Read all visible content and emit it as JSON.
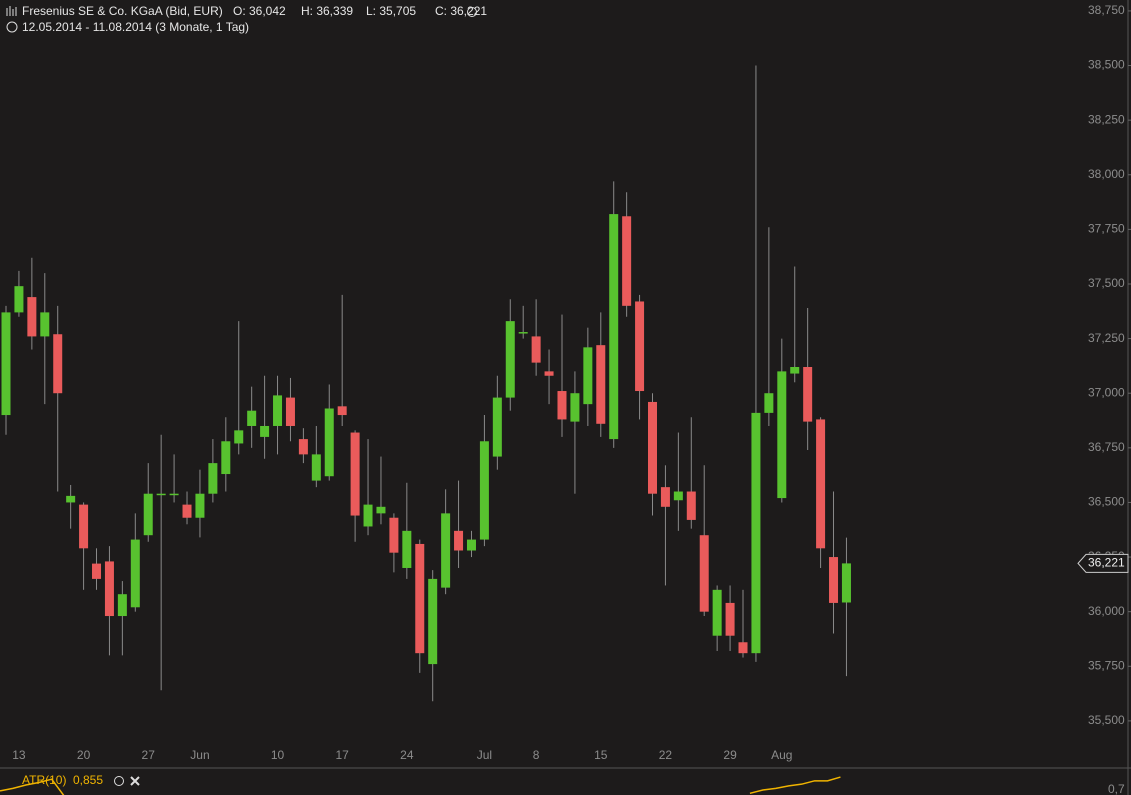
{
  "chart_data": {
    "type": "candlestick",
    "title": "Fresenius SE & Co. KGaA (Bid, EUR)",
    "ohlc_labels": [
      "O: 36,042",
      "H: 36,339",
      "L: 35,705",
      "C: 36,221"
    ],
    "subtitle": "12.05.2014 - 11.08.2014 (3 Monate, 1 Tag)",
    "categories": [
      null,
      "13",
      null,
      null,
      null,
      null,
      "20",
      null,
      null,
      null,
      null,
      "27",
      null,
      null,
      null,
      "Jun",
      null,
      null,
      null,
      null,
      null,
      "10",
      null,
      null,
      null,
      null,
      "17",
      null,
      null,
      null,
      null,
      "24",
      null,
      null,
      null,
      null,
      null,
      "Jul",
      null,
      null,
      null,
      "8",
      null,
      null,
      null,
      null,
      "15",
      null,
      null,
      null,
      null,
      "22",
      null,
      null,
      null,
      null,
      "29",
      null,
      null,
      null,
      "Aug",
      null,
      null,
      null,
      null,
      null
    ],
    "open": [
      36.9,
      37.37,
      37.44,
      37.26,
      37.27,
      36.5,
      36.49,
      36.22,
      36.23,
      35.98,
      36.02,
      36.35,
      36.54,
      36.54,
      36.49,
      36.43,
      36.54,
      36.63,
      36.77,
      36.85,
      36.8,
      36.85,
      36.98,
      36.79,
      36.6,
      36.62,
      36.94,
      36.82,
      36.39,
      36.45,
      36.43,
      36.2,
      36.31,
      35.76,
      36.11,
      36.37,
      36.28,
      36.33,
      36.71,
      36.98,
      37.28,
      37.26,
      37.1,
      37.01,
      36.87,
      36.95,
      37.22,
      36.79,
      37.81,
      37.42,
      36.96,
      36.57,
      36.51,
      36.55,
      36.35,
      35.89,
      36.04,
      35.86,
      35.81,
      36.91,
      36.52,
      37.09,
      37.12,
      36.88,
      36.25,
      36.042
    ],
    "high": [
      37.4,
      37.56,
      37.62,
      37.55,
      37.4,
      36.58,
      36.5,
      36.29,
      36.3,
      36.14,
      36.45,
      36.68,
      36.81,
      36.72,
      36.55,
      36.65,
      36.79,
      36.89,
      37.33,
      37.03,
      37.08,
      37.08,
      37.07,
      36.84,
      36.85,
      37.04,
      37.45,
      36.83,
      36.79,
      36.71,
      36.45,
      36.59,
      36.33,
      36.19,
      36.56,
      36.6,
      36.37,
      36.9,
      37.08,
      37.43,
      37.4,
      37.43,
      37.2,
      37.36,
      37.1,
      37.3,
      37.37,
      37.97,
      37.92,
      37.45,
      37.0,
      36.67,
      36.82,
      36.89,
      36.67,
      36.12,
      36.12,
      36.1,
      38.5,
      37.76,
      37.25,
      37.58,
      37.39,
      36.89,
      36.55,
      36.339
    ],
    "low": [
      36.81,
      37.35,
      37.2,
      36.95,
      36.55,
      36.38,
      36.1,
      36.1,
      35.8,
      35.8,
      36.0,
      36.32,
      35.64,
      36.5,
      36.4,
      36.34,
      36.5,
      36.55,
      36.72,
      36.75,
      36.7,
      36.72,
      36.78,
      36.68,
      36.57,
      36.6,
      36.85,
      36.32,
      36.35,
      36.4,
      36.18,
      36.15,
      35.72,
      35.59,
      36.08,
      36.2,
      36.25,
      36.3,
      36.65,
      36.92,
      37.25,
      37.08,
      36.95,
      36.8,
      36.54,
      36.85,
      36.8,
      36.75,
      37.35,
      36.88,
      36.44,
      36.12,
      36.37,
      36.38,
      35.98,
      35.82,
      35.82,
      35.79,
      35.77,
      36.85,
      36.5,
      37.05,
      36.74,
      36.2,
      35.9,
      35.705
    ],
    "close": [
      37.37,
      37.49,
      37.26,
      37.37,
      37.0,
      36.53,
      36.29,
      36.15,
      35.98,
      36.08,
      36.33,
      36.54,
      36.54,
      36.54,
      36.43,
      36.54,
      36.68,
      36.78,
      36.83,
      36.92,
      36.85,
      36.99,
      36.85,
      36.72,
      36.72,
      36.93,
      36.9,
      36.44,
      36.49,
      36.48,
      36.27,
      36.37,
      35.81,
      36.15,
      36.45,
      36.28,
      36.33,
      36.78,
      36.98,
      37.33,
      37.28,
      37.14,
      37.08,
      36.88,
      37.0,
      37.21,
      36.86,
      37.82,
      37.4,
      37.01,
      36.54,
      36.48,
      36.55,
      36.42,
      36.0,
      36.1,
      35.89,
      35.81,
      36.91,
      37.0,
      37.1,
      37.12,
      36.87,
      36.29,
      36.04,
      36.221
    ],
    "up_color": "#58c22f",
    "down_color": "#ea5b5b",
    "wick_color": "#8a8a8a",
    "ylim": [
      35.44,
      38.8
    ],
    "yticks": [
      {
        "value": 35.5,
        "label": "35,500"
      },
      {
        "value": 35.75,
        "label": "35,750"
      },
      {
        "value": 36,
        "label": "36,000"
      },
      {
        "value": 36.25,
        "label": "36,250"
      },
      {
        "value": 36.5,
        "label": "36,500"
      },
      {
        "value": 36.75,
        "label": "36,750"
      },
      {
        "value": 37,
        "label": "37,000"
      },
      {
        "value": 37.25,
        "label": "37,250"
      },
      {
        "value": 37.5,
        "label": "37,500"
      },
      {
        "value": 37.75,
        "label": "37,750"
      },
      {
        "value": 38,
        "label": "38,000"
      },
      {
        "value": 38.25,
        "label": "38,250"
      },
      {
        "value": 38.5,
        "label": "38,500"
      },
      {
        "value": 38.75,
        "label": "38,750"
      }
    ],
    "last_price": {
      "value": 36.221,
      "label": "36,221"
    },
    "indicator": {
      "name": "ATR(10)",
      "value_label": "0,855",
      "color": "#f0b400",
      "values": [
        0.69,
        0.72,
        0.76,
        0.79,
        0.83,
        0.62,
        null,
        null,
        null,
        null,
        null,
        null,
        null,
        null,
        null,
        null,
        null,
        null,
        null,
        null,
        null,
        null,
        null,
        null,
        null,
        null,
        null,
        null,
        null,
        null,
        null,
        null,
        null,
        null,
        null,
        null,
        null,
        null,
        null,
        null,
        null,
        null,
        null,
        null,
        null,
        null,
        null,
        null,
        null,
        null,
        null,
        null,
        null,
        null,
        null,
        null,
        null,
        null,
        0.66,
        0.7,
        0.72,
        0.75,
        0.77,
        0.81,
        0.81,
        0.855
      ],
      "ylim": [
        0.64,
        0.94
      ],
      "yticks": [
        {
          "value": 0.7,
          "label": "0,7"
        }
      ]
    }
  }
}
